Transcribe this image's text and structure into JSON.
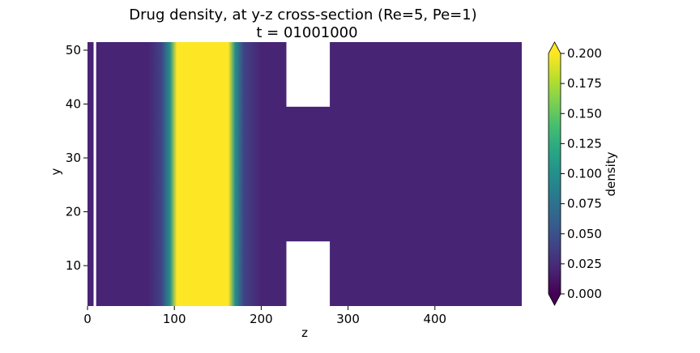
{
  "chart_data": {
    "type": "heatmap",
    "title": "Drug density, at y-z cross-section (Re=5, Pe=1)",
    "subtitle": "t = 01001000",
    "xlabel": "z",
    "ylabel": "y",
    "xlim": [
      0,
      500
    ],
    "ylim": [
      2.5,
      51.5
    ],
    "x_ticks": [
      0,
      100,
      200,
      300,
      400
    ],
    "y_ticks": [
      10,
      20,
      30,
      40,
      50
    ],
    "colormap": "viridis",
    "colorbar": {
      "label": "density",
      "range": [
        0,
        0.2
      ],
      "extend": "both",
      "ticks": [
        "0.000",
        "0.025",
        "0.050",
        "0.075",
        "0.100",
        "0.125",
        "0.150",
        "0.175",
        "0.200"
      ]
    },
    "density_profile_along_z": [
      {
        "z": 0,
        "value": 0.02
      },
      {
        "z": 70,
        "value": 0.02
      },
      {
        "z": 85,
        "value": 0.04
      },
      {
        "z": 95,
        "value": 0.1
      },
      {
        "z": 103,
        "value": 0.2
      },
      {
        "z": 162,
        "value": 0.2
      },
      {
        "z": 170,
        "value": 0.1
      },
      {
        "z": 180,
        "value": 0.04
      },
      {
        "z": 200,
        "value": 0.02
      },
      {
        "z": 500,
        "value": 0.02
      }
    ],
    "masked_regions": [
      {
        "z": [
          7,
          10
        ],
        "y": [
          2.5,
          51.5
        ]
      },
      {
        "z": [
          229,
          279
        ],
        "y": [
          39.5,
          51.5
        ]
      },
      {
        "z": [
          229,
          279
        ],
        "y": [
          2.5,
          14.5
        ]
      }
    ]
  }
}
